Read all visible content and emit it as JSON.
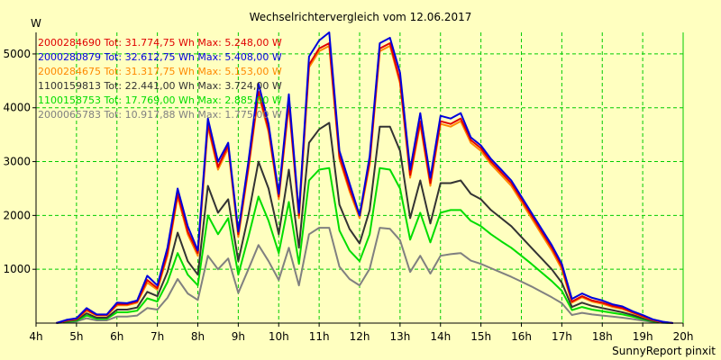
{
  "chart_data": {
    "type": "line",
    "title": "Wechselrichtervergleich vom 12.06.2017",
    "ylabel": "W",
    "footer": "SunnyReport pinxit",
    "xlim": [
      4,
      20
    ],
    "ylim": [
      0,
      5400
    ],
    "x_ticks": [
      4,
      5,
      6,
      7,
      8,
      9,
      10,
      11,
      12,
      13,
      14,
      15,
      16,
      17,
      18,
      19,
      20
    ],
    "x_tick_labels": [
      "4h",
      "5h",
      "6h",
      "7h",
      "8h",
      "9h",
      "10h",
      "11h",
      "12h",
      "13h",
      "14h",
      "15h",
      "16h",
      "17h",
      "18h",
      "19h",
      "20h"
    ],
    "y_ticks": [
      1000,
      2000,
      3000,
      4000,
      5000
    ],
    "y_tick_labels": [
      "1000",
      "2000",
      "3000",
      "4000",
      "5000"
    ],
    "grid": true,
    "legend_position": "top-left",
    "colors": {
      "background": "#ffffc0",
      "grid": "#00cc00",
      "axis": "#000000"
    },
    "x": [
      4.5,
      4.75,
      5,
      5.25,
      5.5,
      5.75,
      6,
      6.25,
      6.5,
      6.75,
      7,
      7.25,
      7.5,
      7.75,
      8,
      8.25,
      8.5,
      8.75,
      9,
      9.25,
      9.5,
      9.75,
      10,
      10.25,
      10.5,
      10.75,
      11,
      11.25,
      11.5,
      11.75,
      12,
      12.25,
      12.5,
      12.75,
      13,
      13.25,
      13.5,
      13.75,
      14,
      14.25,
      14.5,
      14.75,
      15,
      15.25,
      15.5,
      15.75,
      16,
      16.25,
      16.5,
      16.75,
      17,
      17.25,
      17.5,
      17.75,
      18,
      18.25,
      18.5,
      18.75,
      19,
      19.25,
      19.5,
      19.75
    ],
    "series": [
      {
        "name": "2000284690",
        "color": "#e00000",
        "total": "31.774,75",
        "max": "5.248,00",
        "label": "2000284690 Tot: 31.774,75 Wh Max: 5.248,00 W",
        "values": [
          0,
          50,
          80,
          250,
          150,
          150,
          350,
          350,
          400,
          800,
          650,
          1300,
          2400,
          1700,
          1300,
          3700,
          2900,
          3300,
          1650,
          2900,
          4300,
          3600,
          2350,
          4100,
          2000,
          4800,
          5100,
          5200,
          3100,
          2500,
          2000,
          3000,
          5100,
          5200,
          4500,
          2750,
          3750,
          2600,
          3750,
          3700,
          3800,
          3400,
          3250,
          3000,
          2800,
          2600,
          2300,
          2000,
          1700,
          1400,
          1050,
          400,
          500,
          420,
          380,
          320,
          280,
          200,
          130,
          60,
          20,
          0
        ]
      },
      {
        "name": "2000280879",
        "color": "#0000dd",
        "total": "32.612,75",
        "max": "5.408,00",
        "label": "2000280879 Tot: 32.612,75 Wh Max: 5.408,00 W",
        "values": [
          0,
          60,
          90,
          280,
          160,
          160,
          380,
          370,
          420,
          880,
          700,
          1400,
          2500,
          1800,
          1350,
          3800,
          3000,
          3350,
          1700,
          3000,
          4450,
          3700,
          2400,
          4250,
          2050,
          4950,
          5250,
          5400,
          3200,
          2600,
          2000,
          3100,
          5200,
          5300,
          4650,
          2850,
          3900,
          2700,
          3850,
          3800,
          3900,
          3450,
          3300,
          3050,
          2850,
          2650,
          2350,
          2050,
          1750,
          1450,
          1100,
          450,
          550,
          470,
          420,
          350,
          310,
          220,
          150,
          70,
          25,
          0
        ]
      },
      {
        "name": "2000284675",
        "color": "#ff8800",
        "total": "31.317,75",
        "max": "5.153,00",
        "label": "2000284675 Tot: 31.317,75 Wh Max: 5.153,00 W",
        "values": [
          0,
          45,
          75,
          230,
          140,
          140,
          330,
          330,
          380,
          750,
          620,
          1250,
          2350,
          1650,
          1250,
          3650,
          2850,
          3250,
          1600,
          2850,
          4250,
          3550,
          2300,
          4050,
          1950,
          4750,
          5050,
          5150,
          3050,
          2450,
          1950,
          2950,
          5050,
          5150,
          4450,
          2700,
          3700,
          2550,
          3700,
          3650,
          3750,
          3350,
          3200,
          2950,
          2750,
          2550,
          2250,
          1950,
          1650,
          1350,
          1000,
          380,
          480,
          400,
          360,
          300,
          260,
          190,
          120,
          55,
          15,
          0
        ]
      },
      {
        "name": "1100159813",
        "color": "#333333",
        "total": "22.441,00",
        "max": "3.724,00",
        "label": "1100159813 Tot: 22.441,00 Wh Max: 3.724,00 W",
        "values": [
          0,
          35,
          60,
          180,
          100,
          100,
          250,
          250,
          290,
          580,
          500,
          950,
          1680,
          1150,
          900,
          2550,
          2050,
          2300,
          1150,
          2000,
          3000,
          2500,
          1650,
          2850,
          1400,
          3350,
          3600,
          3720,
          2200,
          1750,
          1480,
          2100,
          3650,
          3650,
          3200,
          1950,
          2650,
          1850,
          2600,
          2600,
          2650,
          2400,
          2300,
          2100,
          1950,
          1800,
          1600,
          1400,
          1200,
          1000,
          750,
          300,
          380,
          320,
          280,
          240,
          200,
          150,
          90,
          40,
          10,
          0
        ]
      },
      {
        "name": "1100158753",
        "color": "#00dd00",
        "total": "17.769,00",
        "max": "2.885,00",
        "label": "1100158753 Tot: 17.769,00 Wh Max: 2.885,00 W",
        "values": [
          0,
          25,
          45,
          140,
          80,
          80,
          200,
          200,
          230,
          460,
          400,
          760,
          1300,
          900,
          700,
          2000,
          1650,
          1950,
          900,
          1600,
          2350,
          1900,
          1300,
          2250,
          1100,
          2650,
          2850,
          2880,
          1720,
          1350,
          1150,
          1650,
          2880,
          2850,
          2500,
          1550,
          2050,
          1500,
          2050,
          2100,
          2100,
          1900,
          1800,
          1650,
          1520,
          1400,
          1250,
          1100,
          940,
          780,
          600,
          240,
          300,
          250,
          220,
          190,
          160,
          120,
          70,
          30,
          8,
          0
        ]
      },
      {
        "name": "2000065783",
        "color": "#808080",
        "total": "10.917,88",
        "max": "1.775,00",
        "label": "2000065783 Tot: 10.917,88 Wh Max: 1.775,00 W",
        "values": [
          0,
          15,
          30,
          90,
          50,
          50,
          120,
          120,
          140,
          280,
          250,
          470,
          820,
          550,
          430,
          1250,
          1000,
          1200,
          560,
          1000,
          1450,
          1150,
          800,
          1400,
          700,
          1650,
          1770,
          1770,
          1050,
          820,
          700,
          1010,
          1770,
          1750,
          1540,
          950,
          1250,
          920,
          1250,
          1280,
          1300,
          1160,
          1100,
          1020,
          940,
          860,
          770,
          680,
          580,
          480,
          370,
          150,
          190,
          160,
          140,
          120,
          100,
          75,
          45,
          20,
          5,
          0
        ]
      }
    ]
  }
}
